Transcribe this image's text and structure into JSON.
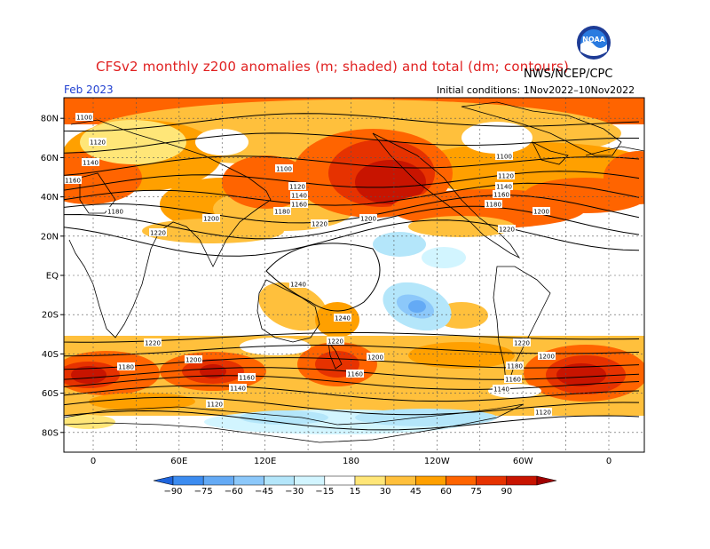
{
  "title": "CFSv2 monthly z200 anomalies (m; shaded) and total (dm; contours)",
  "agency": "NWS/NCEP/CPC",
  "month": "Feb 2023",
  "initial_conditions": "Initial conditions: 1Nov2022–10Nov2022",
  "logo_icon": "noaa-logo-icon",
  "latitude_labels": [
    "80N",
    "60N",
    "40N",
    "20N",
    "EQ",
    "20S",
    "40S",
    "60S",
    "80S"
  ],
  "longitude_labels": [
    "0",
    "60E",
    "120E",
    "180",
    "120W",
    "60W",
    "0"
  ],
  "colorbar": {
    "ticks": [
      "−90",
      "−75",
      "−60",
      "−45",
      "−30",
      "−15",
      "15",
      "30",
      "45",
      "60",
      "75",
      "90"
    ],
    "colors": [
      "#1e64dc",
      "#3c8cf0",
      "#64aaf5",
      "#8cc8fa",
      "#b4e6fa",
      "#d2f5ff",
      "#ffffff",
      "#ffe678",
      "#ffc03c",
      "#ffa000",
      "#ff6400",
      "#e63200",
      "#c81400",
      "#a00000"
    ]
  },
  "contour_labels": [
    "1100",
    "1120",
    "1140",
    "1160",
    "1180",
    "1200",
    "1220",
    "1240"
  ],
  "contour_colors": {
    "land": "#000000",
    "contour": "#000000",
    "grid": "#555555"
  }
}
